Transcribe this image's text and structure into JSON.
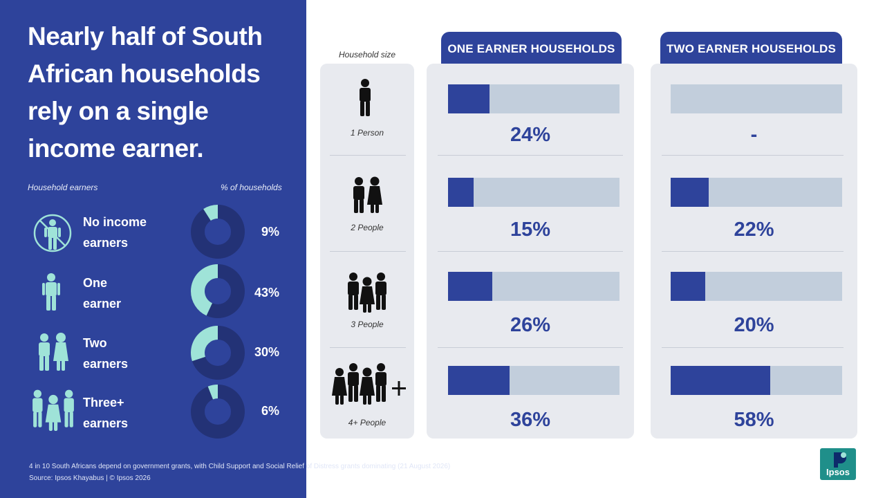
{
  "headline": "Nearly half of South African households rely on a single income earner.",
  "left_labels": {
    "earners": "Household earners",
    "pct": "% of households"
  },
  "earners": [
    {
      "label_line1": "No income",
      "label_line2": "earners",
      "value_label": "9%",
      "icon": "no-person-icon"
    },
    {
      "label_line1": "One",
      "label_line2": "earner",
      "value_label": "43%",
      "icon": "single-person-icon"
    },
    {
      "label_line1": "Two",
      "label_line2": "earners",
      "value_label": "30%",
      "icon": "two-people-icon"
    },
    {
      "label_line1": "Three+",
      "label_line2": "earners",
      "value_label": "6%",
      "icon": "three-people-icon"
    }
  ],
  "household_size_header": "Household size",
  "household_sizes": [
    {
      "label": "1 Person",
      "icon": "one-person-icon"
    },
    {
      "label": "2 People",
      "icon": "two-people-icon"
    },
    {
      "label": "3 People",
      "icon": "three-people-icon"
    },
    {
      "label": "4+ People",
      "icon": "four-plus-people-icon"
    }
  ],
  "columns": [
    {
      "title": "ONE EARNER HOUSEHOLDS",
      "value_labels": [
        "24%",
        "15%",
        "26%",
        "36%"
      ]
    },
    {
      "title": "TWO EARNER HOUSEHOLDS",
      "value_labels": [
        "-",
        "22%",
        "20%",
        "58%"
      ]
    }
  ],
  "chart_data": [
    {
      "type": "pie",
      "categories": [
        "No income earners",
        "One earner",
        "Two earners",
        "Three+ earners"
      ],
      "values": [
        9,
        43,
        30,
        6
      ],
      "xlabel": "Household earners",
      "ylabel": "% of households"
    },
    {
      "type": "bar",
      "categories": [
        "1 Person",
        "2 People",
        "3 People",
        "4+ People"
      ],
      "series": [
        {
          "name": "ONE EARNER HOUSEHOLDS",
          "values": [
            24,
            15,
            26,
            36
          ]
        },
        {
          "name": "TWO EARNER HOUSEHOLDS",
          "values": [
            null,
            22,
            20,
            58
          ]
        }
      ],
      "xlabel": "Household size",
      "ylim": [
        0,
        100
      ]
    }
  ],
  "footnote": {
    "line1": "4 in 10 South Africans depend on government grants, with Child Support and Social Relief of Distress grants dominating (21 August 2026)",
    "line2": "Source: Ipsos Khayabus | © Ipsos 2026"
  },
  "logo_text": "Ipsos",
  "colors": {
    "navy": "#2e439b",
    "donut_bg": "#233276",
    "mint": "#9fe3d8",
    "track": "#c2cedc",
    "card": "#e8eaef",
    "teal": "#1f8f8a"
  }
}
